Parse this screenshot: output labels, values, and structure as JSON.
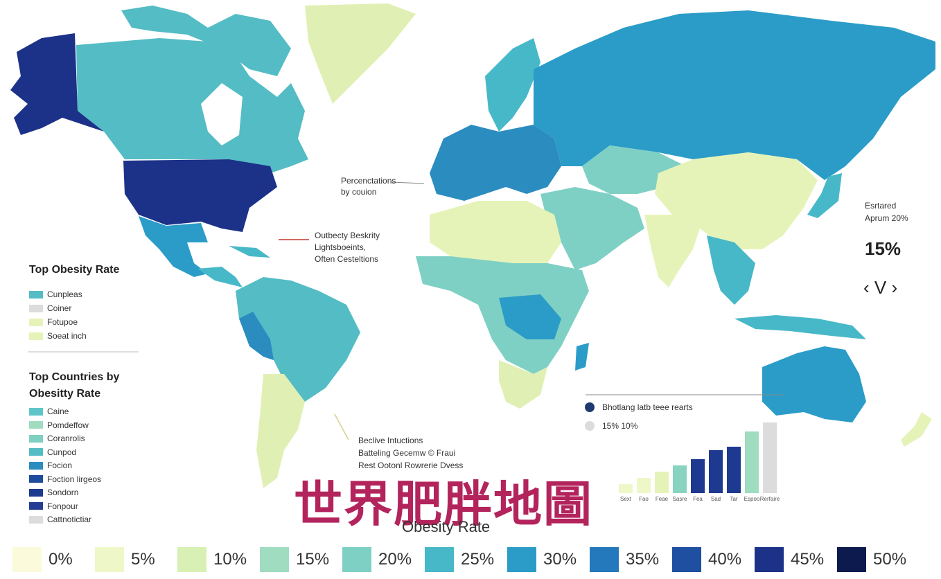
{
  "colors": {
    "background": "#ffffff",
    "title_accent": "#b3245c"
  },
  "annotations": {
    "percentages_by_region": [
      "Percenctations",
      "by couion"
    ],
    "obesity_line1": "Outbecty Beskrity",
    "obesity_line2": "Lightsboeints,",
    "obesity_line3": "Often Cesteltions",
    "bottom_note1": "Beclive Intuctions",
    "bottom_note2": "Batteling Gecemw © Fraui",
    "bottom_note3": "Rest Ootonl Rowrerie Dvess"
  },
  "right_panel": {
    "label1": "Esrtared",
    "label2": "Aprum 20%",
    "value": "15%",
    "nav": "‹ V ›"
  },
  "left_panel": {
    "title1": "Top Obesity Rate",
    "items1": [
      {
        "label": "Cunpleas",
        "color": "#54bcc4"
      },
      {
        "label": "Coiner",
        "color": "#dcdcdc"
      },
      {
        "label": "Fotupoe",
        "color": "#e6f3b8"
      },
      {
        "label": "Soeat inch",
        "color": "#e6f3b8"
      }
    ],
    "title2a": "Top Countries by",
    "title2b": "Obesitty Rate",
    "items2": [
      {
        "label": "Caine",
        "color": "#5ec6c8"
      },
      {
        "label": "Pomdeffow",
        "color": "#9fdcc0"
      },
      {
        "label": "Coranrolis",
        "color": "#7fd0c0"
      },
      {
        "label": "Cunpod",
        "color": "#54bcc4"
      },
      {
        "label": "Focion",
        "color": "#2b8cc0"
      },
      {
        "label": "Foction lirgeos",
        "color": "#1e4c9c"
      },
      {
        "label": "Sondorn",
        "color": "#1e3a90"
      },
      {
        "label": "Fonpour",
        "color": "#243c94"
      },
      {
        "label": "Cattnotictiar",
        "color": "#dcdcdc"
      }
    ]
  },
  "inset_chart": {
    "legend1": "Bhotlang latb teee rearts",
    "legend2": "15% 10%",
    "legend1_color": "#1e3a6e",
    "legend2_color": "#dcdcdc",
    "bars": [
      {
        "label": "Sext",
        "value": 1.5,
        "color": "#eef7c8"
      },
      {
        "label": "Fao",
        "value": 2.5,
        "color": "#eef7c8"
      },
      {
        "label": "Feae",
        "value": 3.5,
        "color": "#e6f3b8"
      },
      {
        "label": "Sasre",
        "value": 4.5,
        "color": "#88d4c0"
      },
      {
        "label": "Fea",
        "value": 5.5,
        "color": "#1e3a90"
      },
      {
        "label": "Sad",
        "value": 7,
        "color": "#1e3a90"
      },
      {
        "label": "Tar",
        "value": 7.5,
        "color": "#1e3a90"
      },
      {
        "label": "Espoo",
        "value": 10,
        "color": "#9fdcc0"
      },
      {
        "label": "Rerfaire",
        "value": 11.5,
        "color": "#dcdcdc"
      }
    ],
    "max": 11.5
  },
  "chinese_title": "世界肥胖地圖",
  "scale_title": "Obesity Rate",
  "scale": [
    {
      "label": "0%",
      "color": "#fbfadb"
    },
    {
      "label": "5%",
      "color": "#eef7c8"
    },
    {
      "label": "10%",
      "color": "#d9f0b4"
    },
    {
      "label": "15%",
      "color": "#9fdcc0"
    },
    {
      "label": "20%",
      "color": "#7fd0c4"
    },
    {
      "label": "25%",
      "color": "#47b8c8"
    },
    {
      "label": "30%",
      "color": "#2b9cc8"
    },
    {
      "label": "35%",
      "color": "#2478bc"
    },
    {
      "label": "40%",
      "color": "#1e4fa0"
    },
    {
      "label": "45%",
      "color": "#1c3188"
    },
    {
      "label": "50%",
      "color": "#0c1a4e"
    }
  ],
  "regions": [
    {
      "name": "Alaska",
      "color": "#1c3188"
    },
    {
      "name": "Canada",
      "color": "#54bcc4"
    },
    {
      "name": "Greenland",
      "color": "#e0f0b4"
    },
    {
      "name": "United States",
      "color": "#1c3188"
    },
    {
      "name": "Mexico",
      "color": "#2b9cc8"
    },
    {
      "name": "Central America",
      "color": "#47b8c8"
    },
    {
      "name": "South America North",
      "color": "#54bcc4"
    },
    {
      "name": "Brazil",
      "color": "#47b8c8"
    },
    {
      "name": "Peru",
      "color": "#2b8cc0"
    },
    {
      "name": "Argentina",
      "color": "#e0f0b4"
    },
    {
      "name": "Europe",
      "color": "#2b8cc0"
    },
    {
      "name": "Scandinavia",
      "color": "#47b8c8"
    },
    {
      "name": "Russia",
      "color": "#2b9cc8"
    },
    {
      "name": "Central Asia",
      "color": "#7fd0c4"
    },
    {
      "name": "China",
      "color": "#e6f3b8"
    },
    {
      "name": "India",
      "color": "#e6f3b8"
    },
    {
      "name": "Middle East",
      "color": "#7fd0c4"
    },
    {
      "name": "North Africa",
      "color": "#e6f3b8"
    },
    {
      "name": "Africa",
      "color": "#7fd0c4"
    },
    {
      "name": "Central Africa",
      "color": "#2b9cc8"
    },
    {
      "name": "Southern Africa",
      "color": "#e0f0b4"
    },
    {
      "name": "Madagascar",
      "color": "#2b9cc8"
    },
    {
      "name": "Southeast Asia",
      "color": "#47b8c8"
    },
    {
      "name": "Japan",
      "color": "#47b8c8"
    },
    {
      "name": "Australia",
      "color": "#2b9cc8"
    },
    {
      "name": "New Zealand",
      "color": "#e6f3b8"
    }
  ]
}
